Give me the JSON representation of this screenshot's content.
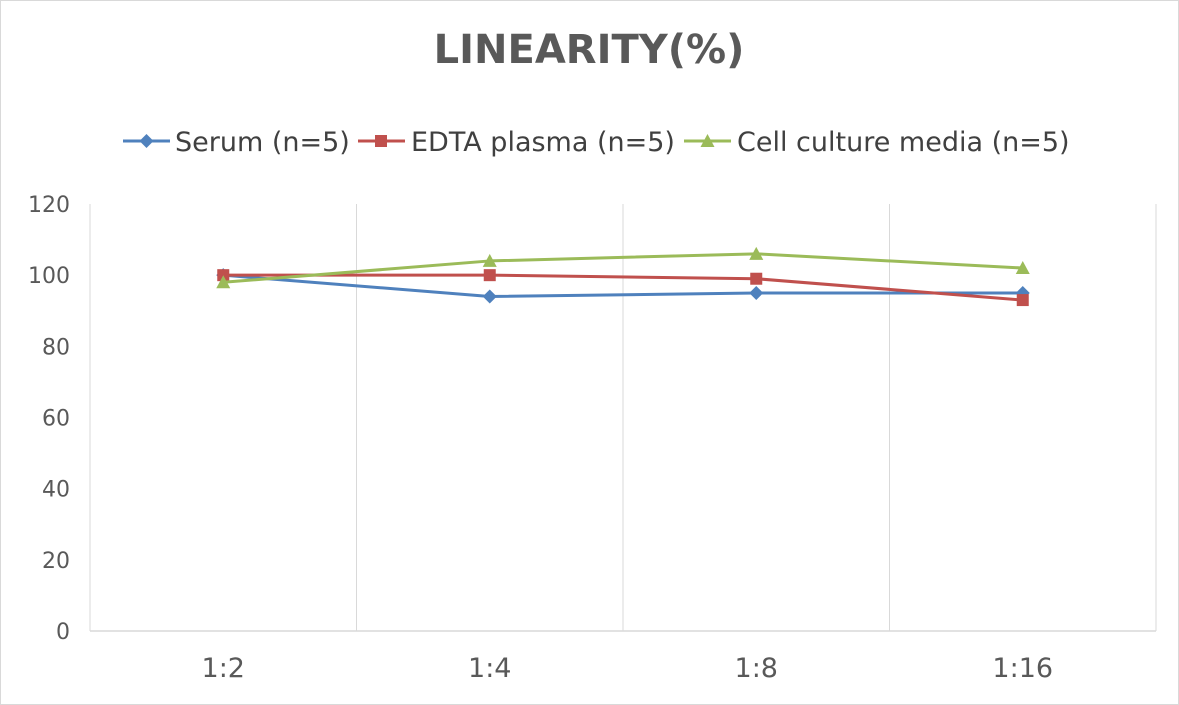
{
  "chart_data": {
    "type": "line",
    "title": "LINEARITY(%)",
    "categories": [
      "1:2",
      "1:4",
      "1:8",
      "1:16"
    ],
    "series": [
      {
        "name": "Serum (n=5)",
        "color": "#4f81bd",
        "marker": "diamond",
        "values": [
          100,
          94,
          95,
          95
        ]
      },
      {
        "name": "EDTA plasma (n=5)",
        "color": "#c0504d",
        "marker": "square",
        "values": [
          100,
          100,
          99,
          93
        ]
      },
      {
        "name": "Cell culture media (n=5)",
        "color": "#9bbb59",
        "marker": "triangle",
        "values": [
          98,
          104,
          106,
          102
        ]
      }
    ],
    "ylim": [
      0,
      120
    ],
    "yticks": [
      "0",
      "20",
      "40",
      "60",
      "80",
      "100",
      "120"
    ],
    "xlabel": "",
    "ylabel": "",
    "grid": "vertical",
    "legend": "top"
  }
}
